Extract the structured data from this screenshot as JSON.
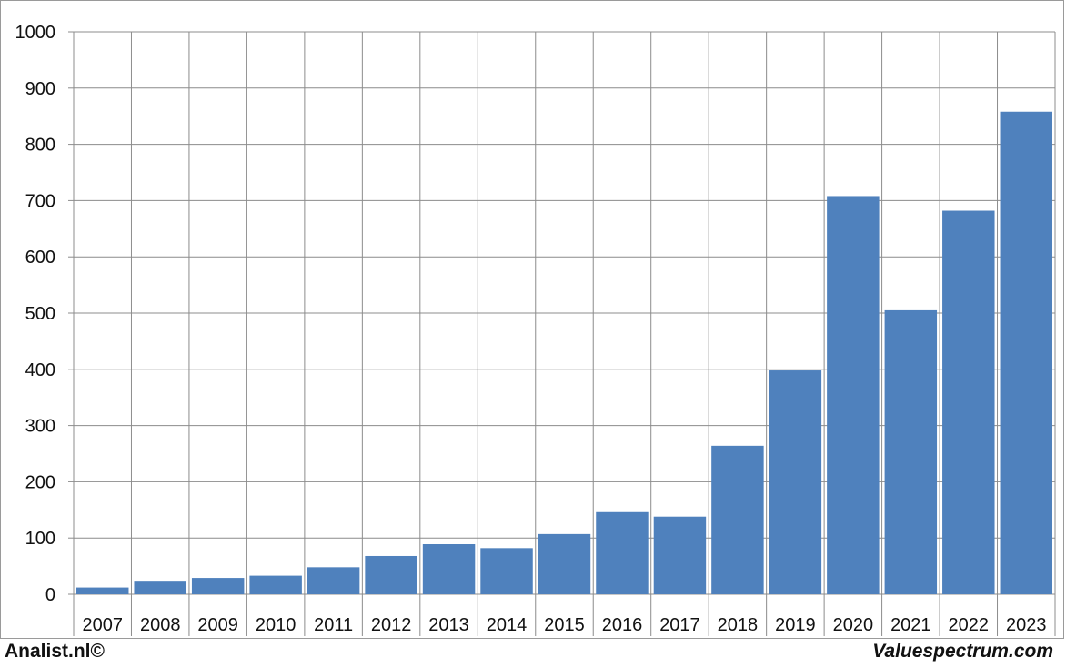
{
  "colors": {
    "bar": "#4f81bd",
    "grid": "#8c8c8c",
    "background": "#ffffff"
  },
  "footer": {
    "left": "Analist.nl©",
    "right": "Valuespectrum.com"
  },
  "chart_data": {
    "type": "bar",
    "title": "",
    "xlabel": "",
    "ylabel": "",
    "categories": [
      "2007",
      "2008",
      "2009",
      "2010",
      "2011",
      "2012",
      "2013",
      "2014",
      "2015",
      "2016",
      "2017",
      "2018",
      "2019",
      "2020",
      "2021",
      "2022",
      "2023"
    ],
    "values": [
      12,
      24,
      29,
      33,
      48,
      68,
      89,
      82,
      107,
      146,
      138,
      264,
      398,
      708,
      505,
      682,
      858
    ],
    "ylim": [
      0,
      1000
    ],
    "yticks": [
      0,
      100,
      200,
      300,
      400,
      500,
      600,
      700,
      800,
      900,
      1000
    ],
    "grid": true,
    "legend": "none"
  }
}
